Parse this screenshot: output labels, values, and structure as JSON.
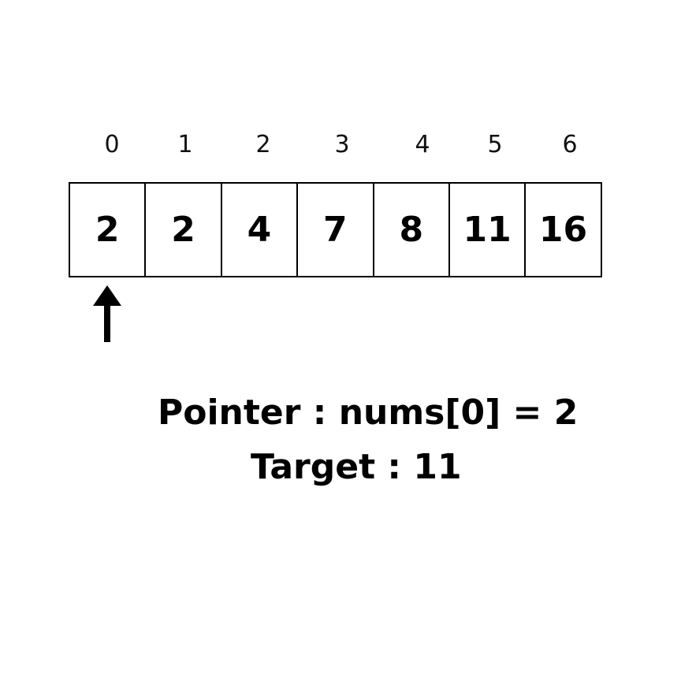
{
  "array": {
    "indices": [
      "0",
      "1",
      "2",
      "3",
      "4",
      "5",
      "6"
    ],
    "values": [
      "2",
      "2",
      "4",
      "7",
      "8",
      "11",
      "16"
    ],
    "pointer_index": 0
  },
  "info": {
    "pointer_text": "Pointer : nums[0] = 2",
    "target_text": "Target : 11"
  },
  "colors": {
    "background": "#ffffff",
    "stroke": "#000000",
    "text": "#000000"
  },
  "icons": {
    "pointer": "up-arrow-icon"
  }
}
